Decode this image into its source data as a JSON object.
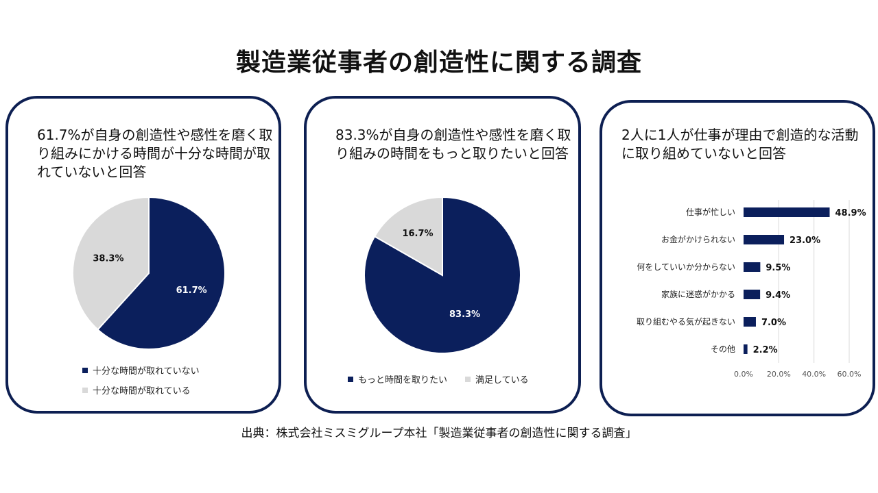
{
  "title": "製造業従事者の創造性に関する調査",
  "source": "出典：株式会社ミスミグループ本社「製造業従事者の創造性に関する調査」",
  "colors": {
    "navy": "#0b1f5c",
    "gray": "#d9d9d9",
    "border": "#0d1f52",
    "grid": "#d9d9d9"
  },
  "panels": [
    {
      "heading": "61.7%が自身の創造性や感性を磨く取り組みにかける時間が十分な時間が取れていないと回答"
    },
    {
      "heading": "83.3%が自身の創造性や感性を磨く取り組みの時間をもっと取りたいと回答"
    },
    {
      "heading": "2人に1人が仕事が理由で創造的な活動に取り組めていないと回答"
    }
  ],
  "chart_data": [
    {
      "type": "pie",
      "slices": [
        {
          "label": "十分な時間が取れていない",
          "value": 61.7,
          "value_label": "61.7%",
          "color": "#0b1f5c"
        },
        {
          "label": "十分な時間が取れている",
          "value": 38.3,
          "value_label": "38.3%",
          "color": "#d9d9d9"
        }
      ],
      "legend_position": "bottom"
    },
    {
      "type": "pie",
      "slices": [
        {
          "label": "もっと時間を取りたい",
          "value": 83.3,
          "value_label": "83.3%",
          "color": "#0b1f5c"
        },
        {
          "label": "満足している",
          "value": 16.7,
          "value_label": "16.7%",
          "color": "#d9d9d9"
        }
      ],
      "legend_position": "bottom"
    },
    {
      "type": "bar",
      "orientation": "horizontal",
      "categories": [
        "仕事が忙しい",
        "お金がかけられない",
        "何をしていいか分からない",
        "家族に迷惑がかかる",
        "取り組むやる気が起きない",
        "その他"
      ],
      "values": [
        48.9,
        23.0,
        9.5,
        9.4,
        7.0,
        2.2
      ],
      "value_labels": [
        "48.9%",
        "23.0%",
        "9.5%",
        "9.4%",
        "7.0%",
        "2.2%"
      ],
      "x_ticks": [
        "0.0%",
        "20.0%",
        "40.0%",
        "60.0%"
      ],
      "xlim": [
        0,
        60
      ],
      "grid": true,
      "color": "#0b1f5c"
    }
  ]
}
